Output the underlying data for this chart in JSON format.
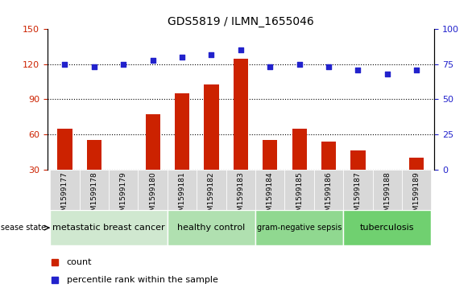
{
  "title": "GDS5819 / ILMN_1655046",
  "samples": [
    "GSM1599177",
    "GSM1599178",
    "GSM1599179",
    "GSM1599180",
    "GSM1599181",
    "GSM1599182",
    "GSM1599183",
    "GSM1599184",
    "GSM1599185",
    "GSM1599186",
    "GSM1599187",
    "GSM1599188",
    "GSM1599189"
  ],
  "counts": [
    65,
    55,
    0,
    77,
    95,
    103,
    125,
    55,
    65,
    54,
    46,
    30,
    40
  ],
  "percentile_ranks": [
    75,
    73,
    75,
    78,
    80,
    82,
    85,
    73,
    75,
    73,
    71,
    68,
    71
  ],
  "disease_groups": [
    {
      "label": "metastatic breast cancer",
      "start": 0,
      "end": 4,
      "color": "#d0e8d0"
    },
    {
      "label": "healthy control",
      "start": 4,
      "end": 7,
      "color": "#b0e0b0"
    },
    {
      "label": "gram-negative sepsis",
      "start": 7,
      "end": 10,
      "color": "#90d890"
    },
    {
      "label": "tuberculosis",
      "start": 10,
      "end": 13,
      "color": "#70d070"
    }
  ],
  "ylim_left": [
    30,
    150
  ],
  "ylim_right": [
    0,
    100
  ],
  "yticks_left": [
    30,
    60,
    90,
    120,
    150
  ],
  "yticks_right": [
    0,
    25,
    50,
    75,
    100
  ],
  "bar_color": "#cc2200",
  "dot_color": "#2222cc",
  "grid_color": "#000000",
  "background_color": "#ffffff",
  "tick_label_color_left": "#cc2200",
  "tick_label_color_right": "#2222cc"
}
